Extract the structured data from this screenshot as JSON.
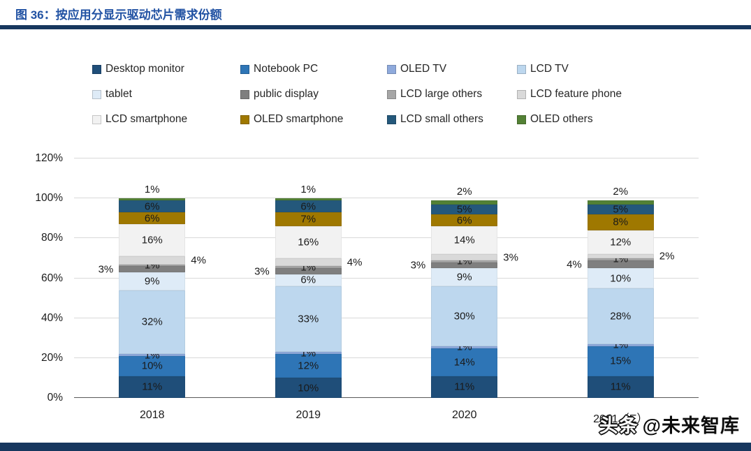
{
  "figure": {
    "title": "图 36：按应用分显示驱动芯片需求份额"
  },
  "watermark": {
    "brand": "头条",
    "handle": "@未来智库"
  },
  "chart_data": {
    "type": "bar",
    "stacked": true,
    "title": "按应用分显示驱动芯片需求份额",
    "xlabel": "",
    "ylabel": "",
    "categories": [
      "2018",
      "2019",
      "2020",
      "2021（E）"
    ],
    "series": [
      {
        "name": "Desktop monitor",
        "color": "#1F4E79",
        "values": [
          11,
          10,
          11,
          11
        ],
        "label_pos": "inside"
      },
      {
        "name": "Notebook PC",
        "color": "#2E75B6",
        "values": [
          10,
          12,
          14,
          15
        ],
        "label_pos": "inside"
      },
      {
        "name": "OLED TV",
        "color": "#8FAADC",
        "values": [
          1,
          1,
          1,
          1
        ],
        "label_pos": "inside"
      },
      {
        "name": "LCD TV",
        "color": "#BDD7EE",
        "values": [
          32,
          33,
          30,
          28
        ],
        "label_pos": "inside"
      },
      {
        "name": "tablet",
        "color": "#DEEBF7",
        "values": [
          9,
          6,
          9,
          10
        ],
        "label_pos": "inside"
      },
      {
        "name": "public display",
        "color": "#7F7F7F",
        "values": [
          3,
          3,
          3,
          4
        ],
        "label_pos": "left"
      },
      {
        "name": "LCD large others",
        "color": "#A6A6A6",
        "values": [
          1,
          1,
          1,
          1
        ],
        "label_pos": "inside"
      },
      {
        "name": "LCD feature phone",
        "color": "#D9D9D9",
        "values": [
          4,
          4,
          3,
          2
        ],
        "label_pos": "right"
      },
      {
        "name": "LCD smartphone",
        "color": "#F2F2F2",
        "values": [
          16,
          16,
          14,
          12
        ],
        "label_pos": "inside"
      },
      {
        "name": "OLED smartphone",
        "color": "#9F7800",
        "values": [
          6,
          7,
          6,
          8
        ],
        "label_pos": "inside"
      },
      {
        "name": "LCD small others",
        "color": "#24587B",
        "values": [
          6,
          6,
          5,
          5
        ],
        "label_pos": "inside"
      },
      {
        "name": "OLED others",
        "color": "#538135",
        "values": [
          1,
          1,
          2,
          2
        ],
        "label_pos": "top"
      }
    ],
    "ylim": [
      0,
      120
    ],
    "ytick_step": 20,
    "yticks": [
      "0%",
      "20%",
      "40%",
      "60%",
      "80%",
      "100%",
      "120%"
    ],
    "grid": true,
    "legend_position": "top",
    "label_format": "percent"
  }
}
